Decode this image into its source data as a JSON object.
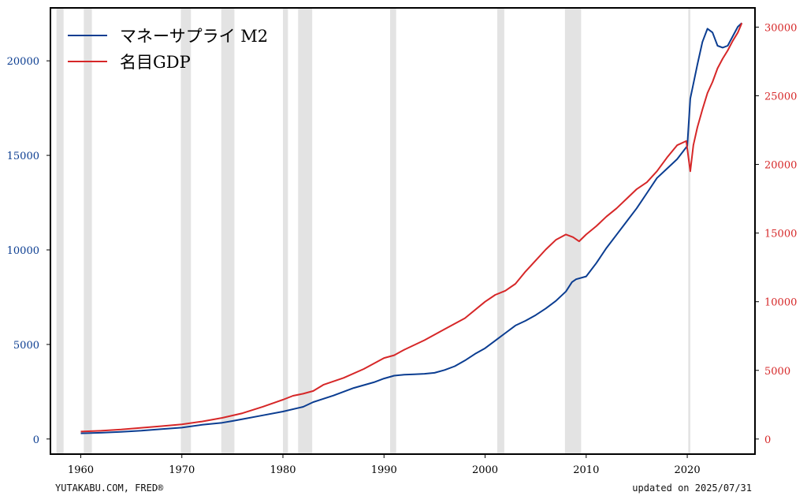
{
  "chart_data": {
    "type": "line",
    "title": "",
    "xlabel": "",
    "x_ticks": [
      "1960",
      "1970",
      "1980",
      "1990",
      "2000",
      "2010",
      "2020"
    ],
    "xlim": [
      1957,
      2026.7
    ],
    "left_axis": {
      "ylim": [
        -800,
        22800
      ],
      "ticks": [
        "0",
        "5000",
        "10000",
        "15000",
        "20000"
      ],
      "color": "#0b3d91"
    },
    "right_axis": {
      "ylim": [
        -1100,
        31400
      ],
      "ticks": [
        "0",
        "5000",
        "10000",
        "15000",
        "20000",
        "25000",
        "30000"
      ],
      "color": "#d62728"
    },
    "legend": {
      "placement": "top-left",
      "entries": [
        {
          "label": "マネーサプライ M2",
          "color": "#0b3d91"
        },
        {
          "label": "名目GDP",
          "color": "#d62728"
        }
      ]
    },
    "recessions": [
      [
        1957.6,
        1958.3
      ],
      [
        1960.3,
        1961.1
      ],
      [
        1969.9,
        1970.9
      ],
      [
        1973.9,
        1975.2
      ],
      [
        1980.0,
        1980.5
      ],
      [
        1981.5,
        1982.9
      ],
      [
        1990.6,
        1991.2
      ],
      [
        2001.2,
        2001.9
      ],
      [
        2007.9,
        2009.5
      ],
      [
        2020.1,
        2020.3
      ]
    ],
    "series": [
      {
        "name": "マネーサプライ M2",
        "axis": "left",
        "color": "#0b3d91",
        "points": [
          [
            1960,
            300
          ],
          [
            1962,
            330
          ],
          [
            1964,
            380
          ],
          [
            1966,
            440
          ],
          [
            1968,
            520
          ],
          [
            1970,
            600
          ],
          [
            1972,
            750
          ],
          [
            1974,
            860
          ],
          [
            1975,
            950
          ],
          [
            1976,
            1050
          ],
          [
            1978,
            1250
          ],
          [
            1980,
            1450
          ],
          [
            1982,
            1700
          ],
          [
            1983,
            1950
          ],
          [
            1985,
            2300
          ],
          [
            1987,
            2700
          ],
          [
            1989,
            3000
          ],
          [
            1990,
            3200
          ],
          [
            1991,
            3350
          ],
          [
            1992,
            3400
          ],
          [
            1993,
            3420
          ],
          [
            1994,
            3450
          ],
          [
            1995,
            3500
          ],
          [
            1996,
            3650
          ],
          [
            1997,
            3850
          ],
          [
            1998,
            4150
          ],
          [
            1999,
            4500
          ],
          [
            2000,
            4800
          ],
          [
            2001,
            5200
          ],
          [
            2002,
            5600
          ],
          [
            2003,
            6000
          ],
          [
            2004,
            6250
          ],
          [
            2005,
            6550
          ],
          [
            2006,
            6900
          ],
          [
            2007,
            7300
          ],
          [
            2008,
            7800
          ],
          [
            2008.6,
            8300
          ],
          [
            2009,
            8450
          ],
          [
            2010,
            8600
          ],
          [
            2011,
            9300
          ],
          [
            2012,
            10100
          ],
          [
            2013,
            10800
          ],
          [
            2014,
            11500
          ],
          [
            2015,
            12200
          ],
          [
            2016,
            13000
          ],
          [
            2017,
            13800
          ],
          [
            2018,
            14300
          ],
          [
            2019,
            14800
          ],
          [
            2020,
            15500
          ],
          [
            2020.3,
            18000
          ],
          [
            2021,
            19800
          ],
          [
            2021.5,
            21000
          ],
          [
            2022,
            21700
          ],
          [
            2022.5,
            21500
          ],
          [
            2023,
            20800
          ],
          [
            2023.5,
            20700
          ],
          [
            2024,
            20800
          ],
          [
            2024.5,
            21300
          ],
          [
            2025,
            21800
          ],
          [
            2025.4,
            22000
          ]
        ]
      },
      {
        "name": "名目GDP",
        "axis": "right",
        "color": "#d62728",
        "points": [
          [
            1960,
            540
          ],
          [
            1962,
            600
          ],
          [
            1964,
            690
          ],
          [
            1966,
            820
          ],
          [
            1968,
            940
          ],
          [
            1970,
            1070
          ],
          [
            1972,
            1280
          ],
          [
            1974,
            1540
          ],
          [
            1976,
            1880
          ],
          [
            1978,
            2350
          ],
          [
            1980,
            2860
          ],
          [
            1981,
            3150
          ],
          [
            1982,
            3300
          ],
          [
            1983,
            3500
          ],
          [
            1984,
            3950
          ],
          [
            1986,
            4450
          ],
          [
            1988,
            5100
          ],
          [
            1990,
            5900
          ],
          [
            1991,
            6100
          ],
          [
            1992,
            6500
          ],
          [
            1994,
            7200
          ],
          [
            1996,
            8000
          ],
          [
            1998,
            8800
          ],
          [
            2000,
            10000
          ],
          [
            2001,
            10500
          ],
          [
            2002,
            10800
          ],
          [
            2003,
            11300
          ],
          [
            2004,
            12200
          ],
          [
            2005,
            13000
          ],
          [
            2006,
            13800
          ],
          [
            2007,
            14500
          ],
          [
            2008,
            14900
          ],
          [
            2008.7,
            14700
          ],
          [
            2009.3,
            14400
          ],
          [
            2010,
            14900
          ],
          [
            2011,
            15500
          ],
          [
            2012,
            16200
          ],
          [
            2013,
            16800
          ],
          [
            2014,
            17500
          ],
          [
            2015,
            18200
          ],
          [
            2016,
            18700
          ],
          [
            2017,
            19500
          ],
          [
            2018,
            20500
          ],
          [
            2019,
            21400
          ],
          [
            2019.9,
            21700
          ],
          [
            2020.3,
            19500
          ],
          [
            2020.6,
            21400
          ],
          [
            2021,
            22700
          ],
          [
            2021.5,
            24000
          ],
          [
            2022,
            25200
          ],
          [
            2022.5,
            26000
          ],
          [
            2023,
            27000
          ],
          [
            2023.5,
            27700
          ],
          [
            2024,
            28300
          ],
          [
            2024.5,
            29000
          ],
          [
            2025,
            29600
          ],
          [
            2025.4,
            30300
          ]
        ]
      }
    ]
  },
  "footer": {
    "left": "YUTAKABU.COM, FRED®",
    "right": "updated on 2025/07/31"
  }
}
